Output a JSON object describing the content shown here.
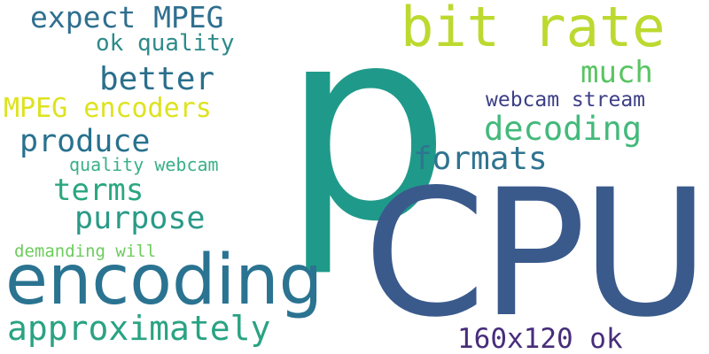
{
  "colors": {
    "background": "#ffffff",
    "teal": "#1f9a8a",
    "navy": "#3a5a8c",
    "lime": "#bcd930",
    "yellow": "#dde31e",
    "green": "#43b97a",
    "sea_green": "#2aa77f",
    "steel_blue": "#2f6f8f",
    "indigo": "#3d3f86",
    "purple": "#472d7b",
    "dark_teal": "#27718e",
    "light_green": "#6ccc5c"
  },
  "words": {
    "p": "p",
    "cpu": "CPU",
    "bit_rate": "bit rate",
    "encoding": "encoding",
    "expect_mpeg": "expect MPEG",
    "ok_quality": "ok quality",
    "better": "better",
    "much": "much",
    "mpeg_encoders": "MPEG encoders",
    "webcam_stream": "webcam stream",
    "decoding": "decoding",
    "produce": "produce",
    "formats": "formats",
    "quality_webcam": "quality webcam",
    "terms": "terms",
    "purpose": "purpose",
    "demanding_will": "demanding will",
    "approximately": "approximately",
    "res_ok": "160x120 ok"
  }
}
